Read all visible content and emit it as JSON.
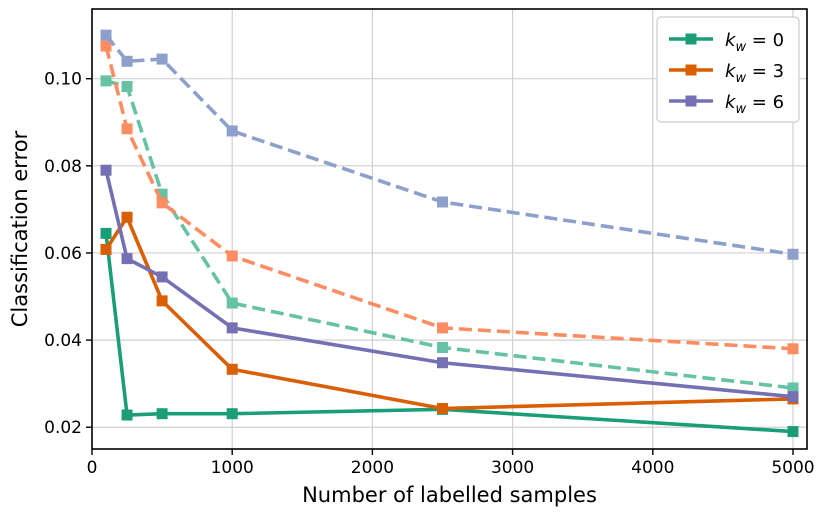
{
  "chart_data": {
    "type": "line",
    "title": "",
    "xlabel": "Number of labelled samples",
    "ylabel": "Classification error",
    "xlim": [
      0,
      5100
    ],
    "ylim": [
      0.015,
      0.116
    ],
    "xticks": [
      0,
      1000,
      2000,
      3000,
      4000,
      5000
    ],
    "xtick_labels": [
      "0",
      "1000",
      "2000",
      "3000",
      "4000",
      "5000"
    ],
    "yticks": [
      0.02,
      0.04,
      0.06,
      0.08,
      0.1
    ],
    "ytick_labels": [
      "0.02",
      "0.04",
      "0.06",
      "0.08",
      "0.10"
    ],
    "grid": true,
    "legend_position": "top-right",
    "x": [
      100,
      250,
      500,
      1000,
      2500,
      5000
    ],
    "series": [
      {
        "name": "k_w = 0",
        "legend_sub": "w",
        "legend_value": "0",
        "in_legend": true,
        "style": "solid",
        "color": "#1b9e77",
        "values": [
          0.0645,
          0.0228,
          0.0231,
          0.0231,
          0.0241,
          0.019
        ]
      },
      {
        "name": "k_w = 3",
        "legend_sub": "w",
        "legend_value": "3",
        "in_legend": true,
        "style": "solid",
        "color": "#d95f02",
        "values": [
          0.0608,
          0.0682,
          0.049,
          0.0333,
          0.0243,
          0.0265
        ]
      },
      {
        "name": "k_w = 6",
        "legend_sub": "w",
        "legend_value": "6",
        "in_legend": true,
        "style": "solid",
        "color": "#7570b3",
        "values": [
          0.079,
          0.0587,
          0.0545,
          0.0428,
          0.0348,
          0.027
        ]
      },
      {
        "name": "k_w = 0 (dashed)",
        "in_legend": false,
        "style": "dashed",
        "color": "#66c2a5",
        "values": [
          0.0995,
          0.0982,
          0.0735,
          0.0485,
          0.0383,
          0.029
        ]
      },
      {
        "name": "k_w = 3 (dashed)",
        "in_legend": false,
        "style": "dashed",
        "color": "#fc8d62",
        "values": [
          0.1075,
          0.0885,
          0.0715,
          0.0593,
          0.0428,
          0.038
        ]
      },
      {
        "name": "k_w = 6 (dashed)",
        "in_legend": false,
        "style": "dashed",
        "color": "#8da0cb",
        "values": [
          0.11,
          0.104,
          0.1045,
          0.088,
          0.0717,
          0.0597
        ]
      }
    ]
  }
}
